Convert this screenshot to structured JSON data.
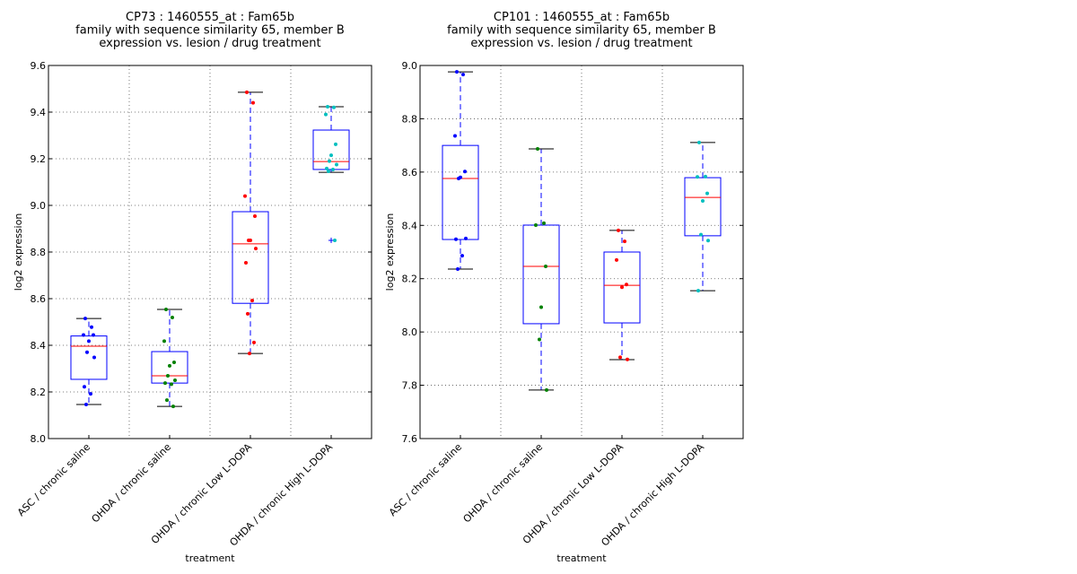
{
  "chart_data": [
    {
      "type": "box",
      "title": [
        "CP73 : 1460555_at : Fam65b",
        "family with sequence similarity 65, member B",
        "expression vs. lesion / drug treatment"
      ],
      "xlabel": "treatment",
      "ylabel": "log2 expression",
      "ylim": [
        8.0,
        9.6
      ],
      "yticks": [
        "8.0",
        "8.2",
        "8.4",
        "8.6",
        "8.8",
        "9.0",
        "9.2",
        "9.4",
        "9.6"
      ],
      "grid": true,
      "categories": [
        "ASC / chronic saline",
        "OHDA / chronic saline",
        "OHDA / chronic Low L-DOPA",
        "OHDA / chronic High L-DOPA"
      ],
      "boxes": [
        {
          "whislo": 8.146,
          "q1": 8.254,
          "med": 8.396,
          "q3": 8.44,
          "whishi": 8.515,
          "fliers": [],
          "color": "#0000ff",
          "points": [
            8.515,
            8.478,
            8.444,
            8.444,
            8.418,
            8.37,
            8.348,
            8.222,
            8.192,
            8.146
          ]
        },
        {
          "whislo": 8.138,
          "q1": 8.238,
          "med": 8.269,
          "q3": 8.373,
          "whishi": 8.554,
          "fliers": [],
          "color": "#008000",
          "points": [
            8.554,
            8.519,
            8.418,
            8.327,
            8.312,
            8.269,
            8.25,
            8.238,
            8.233,
            8.165,
            8.138
          ]
        },
        {
          "whislo": 8.365,
          "q1": 8.58,
          "med": 8.835,
          "q3": 8.973,
          "whishi": 9.485,
          "fliers": [],
          "color": "#ff0000",
          "points": [
            9.485,
            9.44,
            9.04,
            8.954,
            8.85,
            8.85,
            8.815,
            8.754,
            8.592,
            8.535,
            8.412,
            8.365
          ]
        },
        {
          "whislo": 9.142,
          "q1": 9.154,
          "med": 9.188,
          "q3": 9.323,
          "whishi": 9.423,
          "fliers": [
            8.85
          ],
          "color": "#00bfbf",
          "points": [
            9.423,
            9.42,
            9.39,
            9.262,
            9.215,
            9.19,
            9.175,
            9.158,
            9.154,
            9.146,
            8.85
          ]
        }
      ]
    },
    {
      "type": "box",
      "title": [
        "CP101 : 1460555_at : Fam65b",
        "family with sequence similarity 65, member B",
        "expression vs. lesion / drug treatment"
      ],
      "xlabel": "treatment",
      "ylabel": "log2 expression",
      "ylim": [
        7.6,
        9.0
      ],
      "yticks": [
        "7.6",
        "7.8",
        "8.0",
        "8.2",
        "8.4",
        "8.6",
        "8.8",
        "9.0"
      ],
      "grid": true,
      "categories": [
        "ASC / chronic saline",
        "OHDA / chronic saline",
        "OHDA / chronic Low L-DOPA",
        "OHDA / chronic High L-DOPA"
      ],
      "boxes": [
        {
          "whislo": 8.236,
          "q1": 8.347,
          "med": 8.576,
          "q3": 8.7,
          "whishi": 8.976,
          "fliers": [],
          "color": "#0000ff",
          "points": [
            8.976,
            8.966,
            8.736,
            8.602,
            8.58,
            8.576,
            8.351,
            8.348,
            8.286,
            8.236
          ]
        },
        {
          "whislo": 7.782,
          "q1": 8.031,
          "med": 8.246,
          "q3": 8.401,
          "whishi": 8.687,
          "fliers": [],
          "color": "#008000",
          "points": [
            8.687,
            8.408,
            8.401,
            8.246,
            8.093,
            7.972,
            7.782
          ]
        },
        {
          "whislo": 7.896,
          "q1": 8.034,
          "med": 8.175,
          "q3": 8.3,
          "whishi": 8.381,
          "fliers": [],
          "color": "#ff0000",
          "points": [
            8.381,
            8.34,
            8.27,
            8.178,
            8.168,
            7.905,
            7.897
          ]
        },
        {
          "whislo": 8.155,
          "q1": 8.361,
          "med": 8.505,
          "q3": 8.579,
          "whishi": 8.711,
          "fliers": [],
          "color": "#00bfbf",
          "points": [
            8.711,
            8.583,
            8.582,
            8.52,
            8.492,
            8.365,
            8.343,
            8.155
          ]
        }
      ]
    }
  ]
}
